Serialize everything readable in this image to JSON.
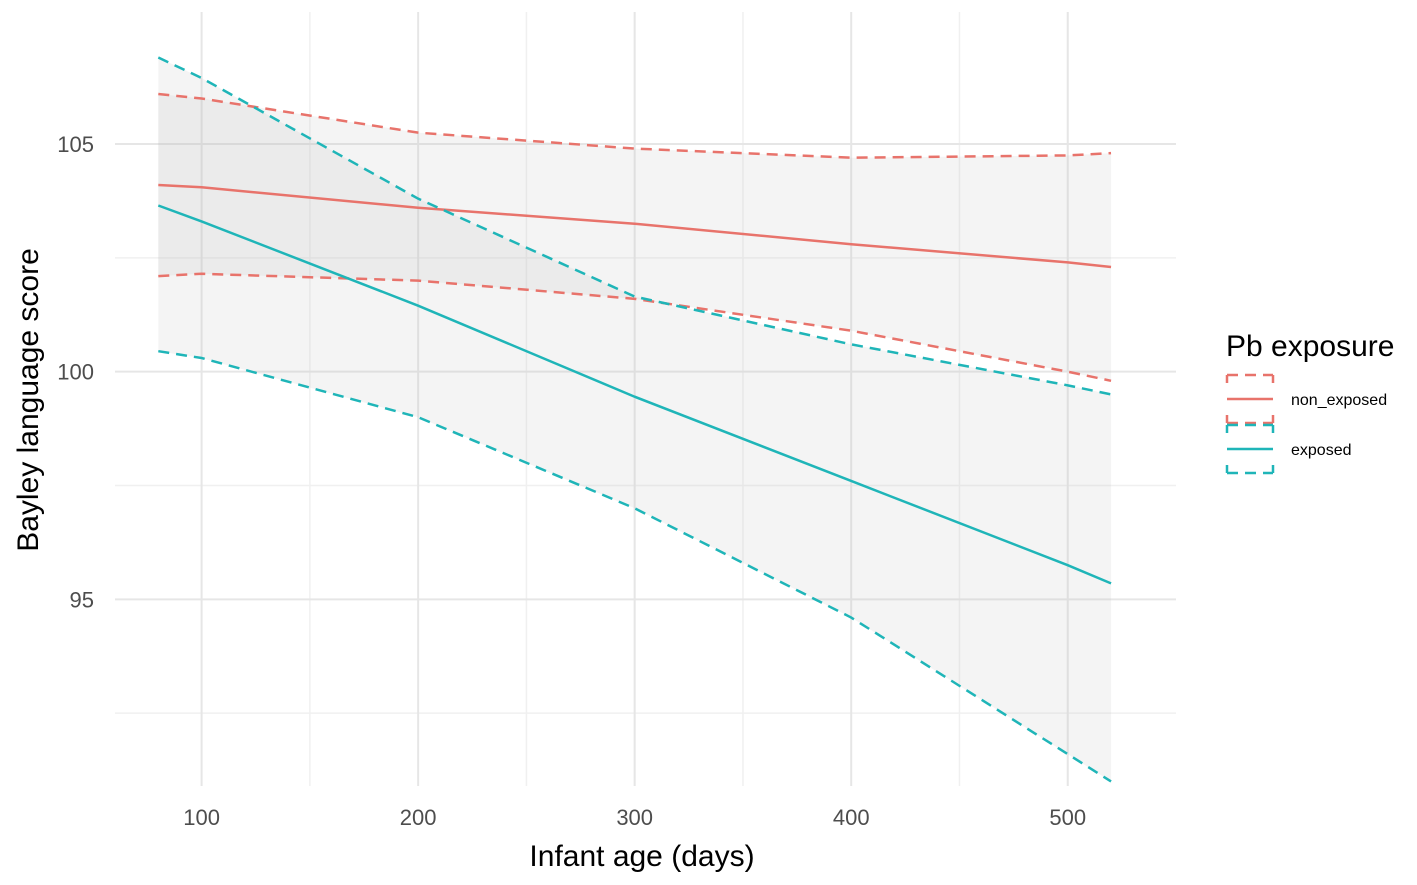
{
  "chart_data": {
    "type": "line",
    "title": "",
    "xlabel": "Infant age (days)",
    "ylabel": "Bayley language score",
    "xlim": [
      60,
      550
    ],
    "ylim": [
      90.9,
      107.9
    ],
    "x_ticks": [
      100,
      200,
      300,
      400,
      500
    ],
    "x_tick_labels": [
      "100",
      "200",
      "300",
      "400",
      "500"
    ],
    "y_ticks": [
      95,
      100,
      105
    ],
    "y_tick_labels": [
      "95",
      "100",
      "105"
    ],
    "grid": true,
    "legend": {
      "title": "Pb exposure",
      "position": "right",
      "entries": [
        "non_exposed",
        "exposed"
      ]
    },
    "series": [
      {
        "name": "non_exposed",
        "color": "#e8736b",
        "x": [
          80,
          100,
          200,
          300,
          400,
          500,
          520
        ],
        "fit": [
          104.1,
          104.05,
          103.6,
          103.25,
          102.8,
          102.4,
          102.3
        ],
        "lower": [
          102.1,
          102.15,
          102.0,
          101.6,
          100.9,
          100.0,
          99.8
        ],
        "upper": [
          106.1,
          106.0,
          105.25,
          104.9,
          104.7,
          104.75,
          104.8
        ]
      },
      {
        "name": "exposed",
        "color": "#1fb5b8",
        "x": [
          80,
          100,
          200,
          300,
          400,
          500,
          520
        ],
        "fit": [
          103.65,
          103.3,
          101.45,
          99.45,
          97.6,
          95.75,
          95.35
        ],
        "lower": [
          100.45,
          100.3,
          99.0,
          97.0,
          94.6,
          91.6,
          91.0
        ],
        "upper": [
          106.9,
          106.45,
          103.8,
          101.65,
          100.6,
          99.7,
          99.5
        ]
      }
    ]
  }
}
